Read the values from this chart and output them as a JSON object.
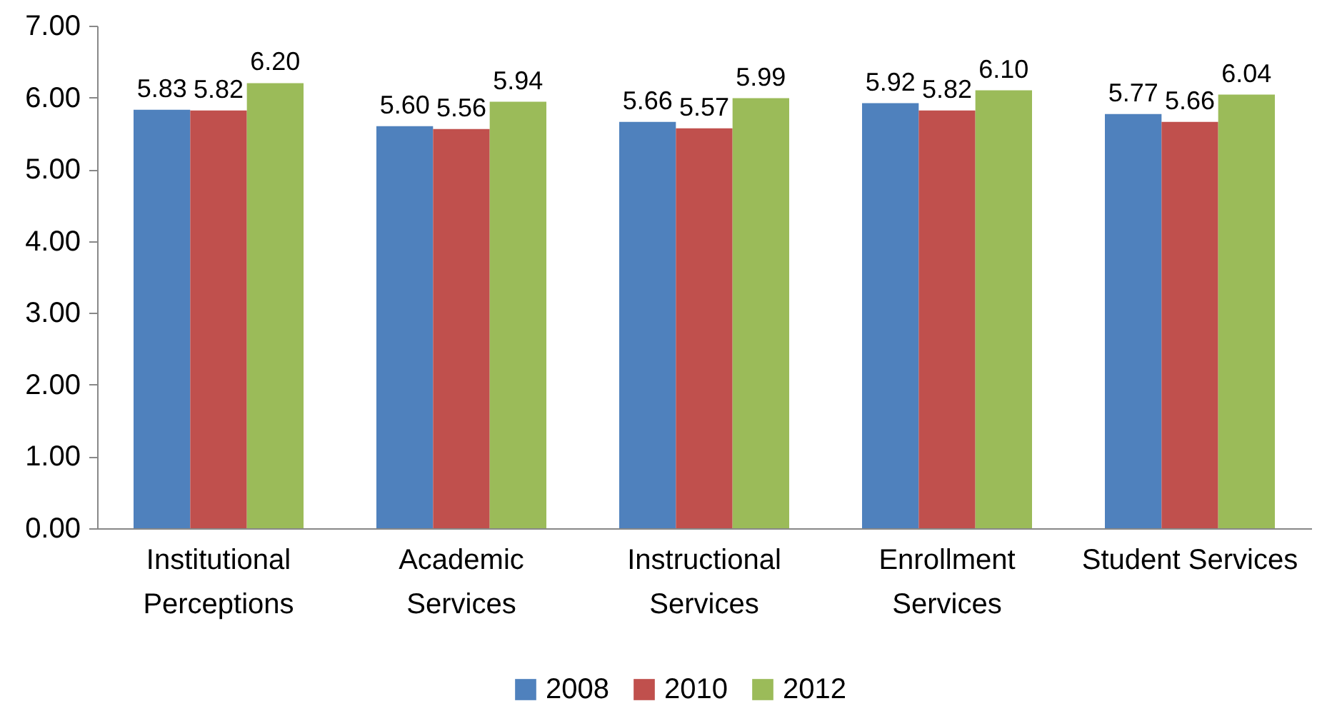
{
  "chart_data": {
    "type": "bar",
    "categories": [
      "Institutional\nPerceptions",
      "Academic\nServices",
      "Instructional\nServices",
      "Enrollment\nServices",
      "Student Services"
    ],
    "series": [
      {
        "name": "2008",
        "color": "#4f81bd",
        "values": [
          5.83,
          5.6,
          5.66,
          5.92,
          5.77
        ],
        "value_labels": [
          "5.83",
          "5.60",
          "5.66",
          "5.92",
          "5.77"
        ]
      },
      {
        "name": "2010",
        "color": "#c0504d",
        "values": [
          5.82,
          5.56,
          5.57,
          5.82,
          5.66
        ],
        "value_labels": [
          "5.82",
          "5.56",
          "5.57",
          "5.82",
          "5.66"
        ]
      },
      {
        "name": "2012",
        "color": "#9bbb59",
        "values": [
          6.2,
          5.94,
          5.99,
          6.1,
          6.04
        ],
        "value_labels": [
          "6.20",
          "5.94",
          "5.99",
          "6.10",
          "6.04"
        ]
      }
    ],
    "ylim": [
      0,
      7
    ],
    "yticks": [
      {
        "value": 0,
        "label": "0.00"
      },
      {
        "value": 1,
        "label": "1.00"
      },
      {
        "value": 2,
        "label": "2.00"
      },
      {
        "value": 3,
        "label": "3.00"
      },
      {
        "value": 4,
        "label": "4.00"
      },
      {
        "value": 5,
        "label": "5.00"
      },
      {
        "value": 6,
        "label": "6.00"
      },
      {
        "value": 7,
        "label": "7.00"
      }
    ],
    "grid": false,
    "legend": "bottom"
  }
}
